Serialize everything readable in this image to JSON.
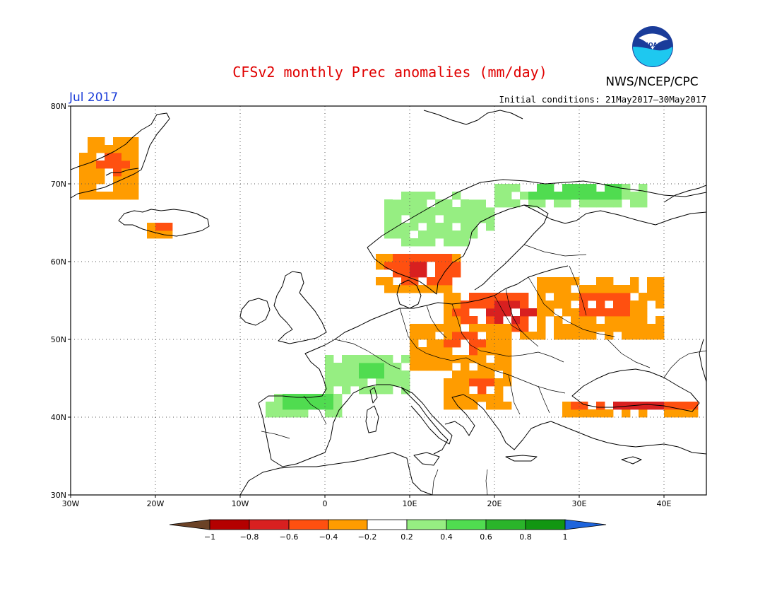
{
  "header": {
    "title": "CFSv2 monthly Prec anomalies (mm/day)",
    "month": "Jul 2017",
    "agency": "NWS/NCEP/CPC",
    "initial_conditions": "Initial conditions: 21May2017–30May2017",
    "logo_text": "NOAA"
  },
  "map": {
    "lon_range": [
      -30,
      45
    ],
    "lat_range": [
      30,
      80
    ],
    "lat_labels": [
      "80N",
      "70N",
      "60N",
      "50N",
      "40N",
      "30N"
    ],
    "lon_labels": [
      "30W",
      "20W",
      "10W",
      "0",
      "10E",
      "20E",
      "30E",
      "40E"
    ],
    "grid": "dotted"
  },
  "legend": {
    "labels": [
      "−1",
      "−0.8",
      "−0.6",
      "−0.4",
      "−0.2",
      "0.2",
      "0.4",
      "0.6",
      "0.8",
      "1"
    ],
    "colors": [
      "#6b4226",
      "#b40000",
      "#d82020",
      "#ff5010",
      "#ff9c00",
      "#ffffff",
      "#96ee82",
      "#50dc50",
      "#2ab42a",
      "#129612",
      "#1e64dc"
    ]
  },
  "anomaly_regions": [
    {
      "name": "Greenland east coast",
      "lon": [
        -29,
        -22
      ],
      "lat": [
        68,
        76
      ],
      "value": -0.4
    },
    {
      "name": "Iceland south",
      "lon": [
        -21,
        -18
      ],
      "lat": [
        63,
        65
      ],
      "value": -0.4
    },
    {
      "name": "Norway coast",
      "lon": [
        5,
        20
      ],
      "lat": [
        61,
        69
      ],
      "value": 0.3
    },
    {
      "name": "Northern Fennoscandia",
      "lon": [
        20,
        38
      ],
      "lat": [
        67,
        70
      ],
      "value": 0.5
    },
    {
      "name": "Southern Scandinavia",
      "lon": [
        6,
        16
      ],
      "lat": [
        56,
        61
      ],
      "value": -0.6
    },
    {
      "name": "Poland / Baltic",
      "lon": [
        14,
        28
      ],
      "lat": [
        50,
        56
      ],
      "value": -0.6
    },
    {
      "name": "Central Europe",
      "lon": [
        10,
        22
      ],
      "lat": [
        46,
        52
      ],
      "value": -0.4
    },
    {
      "name": "Western Russia",
      "lon": [
        25,
        40
      ],
      "lat": [
        50,
        58
      ],
      "value": -0.4
    },
    {
      "name": "Alps / France",
      "lon": [
        0,
        10
      ],
      "lat": [
        43,
        48
      ],
      "value": 0.4
    },
    {
      "name": "Northern Iberia",
      "lon": [
        -7,
        2
      ],
      "lat": [
        40,
        43
      ],
      "value": 0.5
    },
    {
      "name": "Balkans",
      "lon": [
        14,
        22
      ],
      "lat": [
        41,
        46
      ],
      "value": -0.4
    },
    {
      "name": "Turkey north",
      "lon": [
        28,
        44
      ],
      "lat": [
        40,
        42
      ],
      "value": -0.6
    }
  ]
}
